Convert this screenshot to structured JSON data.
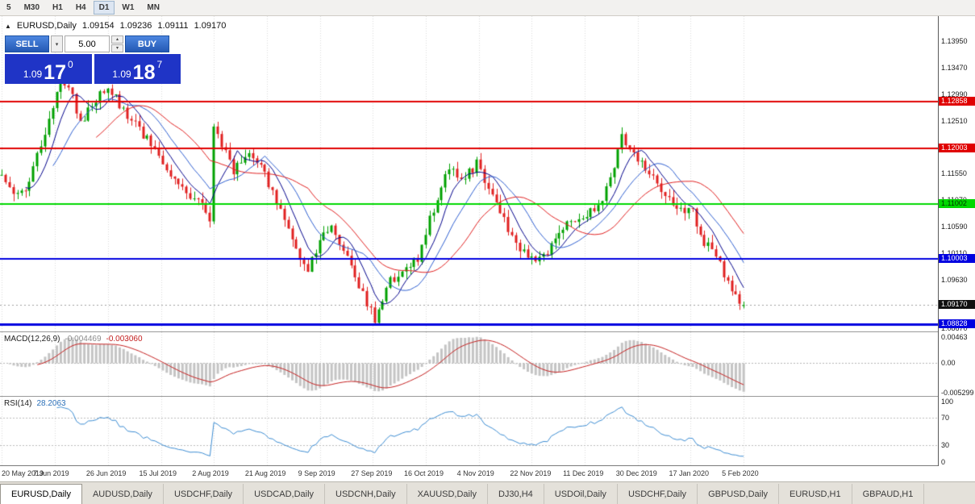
{
  "icons": {
    "collapse": "▲",
    "dropdown": "▾",
    "spin_up": "▴",
    "spin_down": "▾"
  },
  "toolbar": {
    "timeframes": [
      {
        "label": "5",
        "active": false
      },
      {
        "label": "M30",
        "active": false
      },
      {
        "label": "H1",
        "active": false
      },
      {
        "label": "H4",
        "active": false
      },
      {
        "label": "D1",
        "active": true
      },
      {
        "label": "W1",
        "active": false
      },
      {
        "label": "MN",
        "active": false
      }
    ]
  },
  "chart_header": {
    "symbol_label": "EURUSD,Daily",
    "open": "1.09154",
    "high": "1.09236",
    "low": "1.09111",
    "close": "1.09170"
  },
  "trade_panel": {
    "sell_label": "SELL",
    "buy_label": "BUY",
    "volume": "5.00",
    "sell_price": {
      "big": "1.09",
      "pips": "17",
      "pt": "0"
    },
    "buy_price": {
      "big": "1.09",
      "pips": "18",
      "pt": "7"
    }
  },
  "indicators": {
    "macd": {
      "label": "MACD(12,26,9)",
      "value_hist": "-0.004469",
      "value_signal": "-0.003060"
    },
    "rsi": {
      "label": "RSI(14)",
      "value": "28.2063"
    }
  },
  "tabs": [
    {
      "label": "EURUSD,Daily",
      "active": true
    },
    {
      "label": "AUDUSD,Daily",
      "active": false
    },
    {
      "label": "USDCHF,Daily",
      "active": false
    },
    {
      "label": "USDCAD,Daily",
      "active": false
    },
    {
      "label": "USDCNH,Daily",
      "active": false
    },
    {
      "label": "XAUUSD,Daily",
      "active": false
    },
    {
      "label": "DJ30,H4",
      "active": false
    },
    {
      "label": "USDOil,Daily",
      "active": false
    },
    {
      "label": "USDCHF,Daily",
      "active": false
    },
    {
      "label": "GBPUSD,Daily",
      "active": false
    },
    {
      "label": "EURUSD,H1",
      "active": false
    },
    {
      "label": "GBPAUD,H1",
      "active": false
    }
  ],
  "chart_data": {
    "type": "candlestick",
    "symbol": "EURUSD",
    "timeframe": "Daily",
    "bars": 190,
    "seed": 11,
    "noise": 0.0018,
    "wick": 0.0014,
    "candle_region_ratio": 0.795,
    "price_range": {
      "top": 1.144,
      "bottom": 1.0868
    },
    "up_color": "#00A000",
    "down_color": "#E02020",
    "grid_color": "#D9D9D9",
    "anchors": [
      [
        0,
        1.115
      ],
      [
        3,
        1.1125
      ],
      [
        6,
        1.1118
      ],
      [
        10,
        1.121
      ],
      [
        14,
        1.1305
      ],
      [
        17,
        1.1318
      ],
      [
        20,
        1.1245
      ],
      [
        24,
        1.1292
      ],
      [
        27,
        1.1312
      ],
      [
        31,
        1.127
      ],
      [
        36,
        1.1225
      ],
      [
        41,
        1.118
      ],
      [
        46,
        1.1125
      ],
      [
        51,
        1.1105
      ],
      [
        53,
        1.1075
      ],
      [
        54,
        1.124
      ],
      [
        56,
        1.1205
      ],
      [
        59,
        1.116
      ],
      [
        63,
        1.1195
      ],
      [
        66,
        1.117
      ],
      [
        70,
        1.11
      ],
      [
        74,
        1.1035
      ],
      [
        78,
        1.0978
      ],
      [
        81,
        1.104
      ],
      [
        84,
        1.1062
      ],
      [
        88,
        1.1
      ],
      [
        92,
        1.0935
      ],
      [
        95,
        1.0893
      ],
      [
        99,
        1.096
      ],
      [
        103,
        1.0985
      ],
      [
        106,
        1.0998
      ],
      [
        109,
        1.107
      ],
      [
        113,
        1.116
      ],
      [
        118,
        1.115
      ],
      [
        121,
        1.1172
      ],
      [
        124,
        1.113
      ],
      [
        128,
        1.107
      ],
      [
        132,
        1.1015
      ],
      [
        136,
        1.0992
      ],
      [
        139,
        1.1012
      ],
      [
        143,
        1.1058
      ],
      [
        147,
        1.1075
      ],
      [
        151,
        1.1088
      ],
      [
        155,
        1.114
      ],
      [
        158,
        1.1228
      ],
      [
        161,
        1.1185
      ],
      [
        164,
        1.1162
      ],
      [
        168,
        1.1125
      ],
      [
        172,
        1.1098
      ],
      [
        176,
        1.1086
      ],
      [
        179,
        1.1032
      ],
      [
        182,
        1.1002
      ],
      [
        185,
        1.0962
      ],
      [
        187,
        1.0936
      ],
      [
        189,
        1.0917
      ]
    ],
    "last_candle": {
      "open": 1.09154,
      "high": 1.09236,
      "low": 1.09111,
      "close": 1.0917
    },
    "ma_lines": [
      {
        "period": 7,
        "color": "#00008B"
      },
      {
        "period": 14,
        "color": "#2E5FD0"
      },
      {
        "period": 25,
        "color": "#E02020"
      }
    ],
    "hlines": [
      {
        "value": 1.12858,
        "label": "1.12858",
        "color": "#E00000",
        "width": 2,
        "badge_text": "#FFFFFF"
      },
      {
        "value": 1.12003,
        "label": "1.12003",
        "color": "#E00000",
        "width": 2,
        "badge_text": "#FFFFFF"
      },
      {
        "value": 1.11002,
        "label": "1.11002",
        "color": "#00D800",
        "width": 2,
        "badge_text": "#003000"
      },
      {
        "value": 1.10003,
        "label": "1.10003",
        "color": "#0000E0",
        "width": 2,
        "badge_text": "#FFFFFF"
      },
      {
        "value": 1.08828,
        "label": "1.08828",
        "color": "#0000E0",
        "width": 3,
        "badge_text": "#FFFFFF"
      }
    ],
    "current_price": {
      "value": 1.0917,
      "label": "1.09170",
      "badge_color": "#101010",
      "line_color": "#A0A0A0"
    },
    "price_axis_ticks": [
      "1.13950",
      "1.13470",
      "1.12990",
      "1.12510",
      "1.12030",
      "1.11550",
      "1.11070",
      "1.10590",
      "1.10110",
      "1.09630",
      "1.09150",
      "1.08670"
    ],
    "date_tick_step": 13.5,
    "date_labels": [
      "20 May 2019",
      "7 Jun 2019",
      "26 Jun 2019",
      "15 Jul 2019",
      "2 Aug 2019",
      "21 Aug 2019",
      "9 Sep 2019",
      "27 Sep 2019",
      "16 Oct 2019",
      "4 Nov 2019",
      "22 Nov 2019",
      "11 Dec 2019",
      "30 Dec 2019",
      "17 Jan 2020",
      "5 Feb 2020"
    ],
    "macd": {
      "fast": 12,
      "slow": 26,
      "signal": 9,
      "range": {
        "max": 0.0052,
        "min": -0.0058
      },
      "hist_color": "#C4C4C4",
      "signal_color": "#C42020",
      "axis_labels": [
        {
          "text": "0.00463",
          "value": 0.00463
        },
        {
          "text": "0.00",
          "value": 0
        },
        {
          "text": "-0.005299",
          "value": -0.005299
        }
      ]
    },
    "rsi": {
      "period": 14,
      "current": 28.2063,
      "line_color": "#3C8CD2",
      "levels": [
        100,
        70,
        30,
        0
      ],
      "dotted_levels": [
        70,
        30
      ]
    }
  }
}
